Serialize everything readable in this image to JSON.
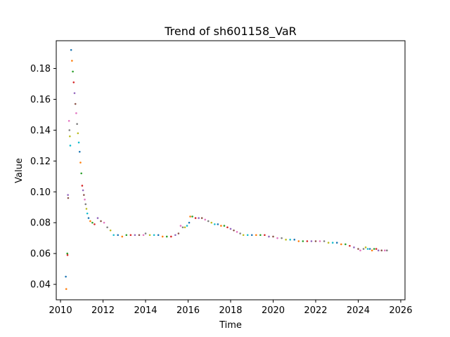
{
  "chart_data": {
    "type": "scatter",
    "title": "Trend of sh601158_VaR",
    "xlabel": "Time",
    "ylabel": "Value",
    "xlim": [
      2009.8,
      2026.2
    ],
    "ylim": [
      0.03,
      0.198
    ],
    "xticks": [
      2010,
      2012,
      2014,
      2016,
      2018,
      2020,
      2022,
      2024,
      2026
    ],
    "yticks": [
      0.04,
      0.06,
      0.08,
      0.1,
      0.12,
      0.14,
      0.16,
      0.18
    ],
    "grid": false,
    "legend": "none",
    "marker_colors": [
      "#1f77b4",
      "#ff7f0e",
      "#2ca02c",
      "#d62728",
      "#9467bd",
      "#8c564b",
      "#e377c2",
      "#7f7f7f",
      "#bcbd22",
      "#17becf"
    ],
    "points": [
      [
        2010.25,
        0.045
      ],
      [
        2010.27,
        0.037
      ],
      [
        2010.32,
        0.06
      ],
      [
        2010.33,
        0.059
      ],
      [
        2010.35,
        0.098
      ],
      [
        2010.36,
        0.096
      ],
      [
        2010.4,
        0.146
      ],
      [
        2010.42,
        0.14
      ],
      [
        2010.44,
        0.136
      ],
      [
        2010.46,
        0.13
      ],
      [
        2010.5,
        0.192
      ],
      [
        2010.54,
        0.185
      ],
      [
        2010.58,
        0.178
      ],
      [
        2010.62,
        0.171
      ],
      [
        2010.66,
        0.164
      ],
      [
        2010.7,
        0.157
      ],
      [
        2010.74,
        0.151
      ],
      [
        2010.78,
        0.144
      ],
      [
        2010.82,
        0.138
      ],
      [
        2010.86,
        0.132
      ],
      [
        2010.9,
        0.126
      ],
      [
        2010.94,
        0.119
      ],
      [
        2010.98,
        0.112
      ],
      [
        2011.02,
        0.104
      ],
      [
        2011.06,
        0.101
      ],
      [
        2011.1,
        0.098
      ],
      [
        2011.14,
        0.095
      ],
      [
        2011.18,
        0.092
      ],
      [
        2011.22,
        0.089
      ],
      [
        2011.26,
        0.086
      ],
      [
        2011.32,
        0.083
      ],
      [
        2011.4,
        0.081
      ],
      [
        2011.5,
        0.08
      ],
      [
        2011.6,
        0.079
      ],
      [
        2011.75,
        0.083
      ],
      [
        2011.9,
        0.081
      ],
      [
        2012.05,
        0.08
      ],
      [
        2012.2,
        0.077
      ],
      [
        2012.35,
        0.075
      ],
      [
        2012.5,
        0.072
      ],
      [
        2012.7,
        0.072
      ],
      [
        2012.9,
        0.071
      ],
      [
        2013.1,
        0.072
      ],
      [
        2013.3,
        0.072
      ],
      [
        2013.5,
        0.072
      ],
      [
        2013.7,
        0.072
      ],
      [
        2013.9,
        0.072
      ],
      [
        2014.0,
        0.073
      ],
      [
        2014.2,
        0.072
      ],
      [
        2014.4,
        0.072
      ],
      [
        2014.6,
        0.072
      ],
      [
        2014.8,
        0.071
      ],
      [
        2015.0,
        0.071
      ],
      [
        2015.2,
        0.071
      ],
      [
        2015.4,
        0.072
      ],
      [
        2015.55,
        0.073
      ],
      [
        2015.65,
        0.078
      ],
      [
        2015.75,
        0.077
      ],
      [
        2015.85,
        0.077
      ],
      [
        2015.95,
        0.078
      ],
      [
        2016.05,
        0.08
      ],
      [
        2016.1,
        0.084
      ],
      [
        2016.2,
        0.084
      ],
      [
        2016.35,
        0.083
      ],
      [
        2016.5,
        0.083
      ],
      [
        2016.65,
        0.083
      ],
      [
        2016.8,
        0.082
      ],
      [
        2016.95,
        0.081
      ],
      [
        2017.1,
        0.08
      ],
      [
        2017.25,
        0.079
      ],
      [
        2017.4,
        0.079
      ],
      [
        2017.55,
        0.078
      ],
      [
        2017.7,
        0.078
      ],
      [
        2017.85,
        0.077
      ],
      [
        2018.0,
        0.076
      ],
      [
        2018.15,
        0.075
      ],
      [
        2018.3,
        0.074
      ],
      [
        2018.45,
        0.073
      ],
      [
        2018.6,
        0.072
      ],
      [
        2018.8,
        0.072
      ],
      [
        2019.0,
        0.072
      ],
      [
        2019.2,
        0.072
      ],
      [
        2019.4,
        0.072
      ],
      [
        2019.6,
        0.072
      ],
      [
        2019.8,
        0.071
      ],
      [
        2020.0,
        0.071
      ],
      [
        2020.2,
        0.07
      ],
      [
        2020.4,
        0.07
      ],
      [
        2020.6,
        0.069
      ],
      [
        2020.8,
        0.069
      ],
      [
        2021.0,
        0.069
      ],
      [
        2021.2,
        0.068
      ],
      [
        2021.4,
        0.068
      ],
      [
        2021.6,
        0.068
      ],
      [
        2021.8,
        0.068
      ],
      [
        2022.0,
        0.068
      ],
      [
        2022.2,
        0.068
      ],
      [
        2022.4,
        0.068
      ],
      [
        2022.6,
        0.067
      ],
      [
        2022.8,
        0.067
      ],
      [
        2023.0,
        0.067
      ],
      [
        2023.2,
        0.066
      ],
      [
        2023.4,
        0.066
      ],
      [
        2023.6,
        0.065
      ],
      [
        2023.8,
        0.064
      ],
      [
        2024.0,
        0.063
      ],
      [
        2024.1,
        0.062
      ],
      [
        2024.25,
        0.063
      ],
      [
        2024.35,
        0.064
      ],
      [
        2024.45,
        0.063
      ],
      [
        2024.55,
        0.063
      ],
      [
        2024.65,
        0.062
      ],
      [
        2024.75,
        0.063
      ],
      [
        2024.85,
        0.063
      ],
      [
        2024.95,
        0.062
      ],
      [
        2025.1,
        0.062
      ],
      [
        2025.25,
        0.062
      ],
      [
        2025.35,
        0.062
      ]
    ]
  }
}
